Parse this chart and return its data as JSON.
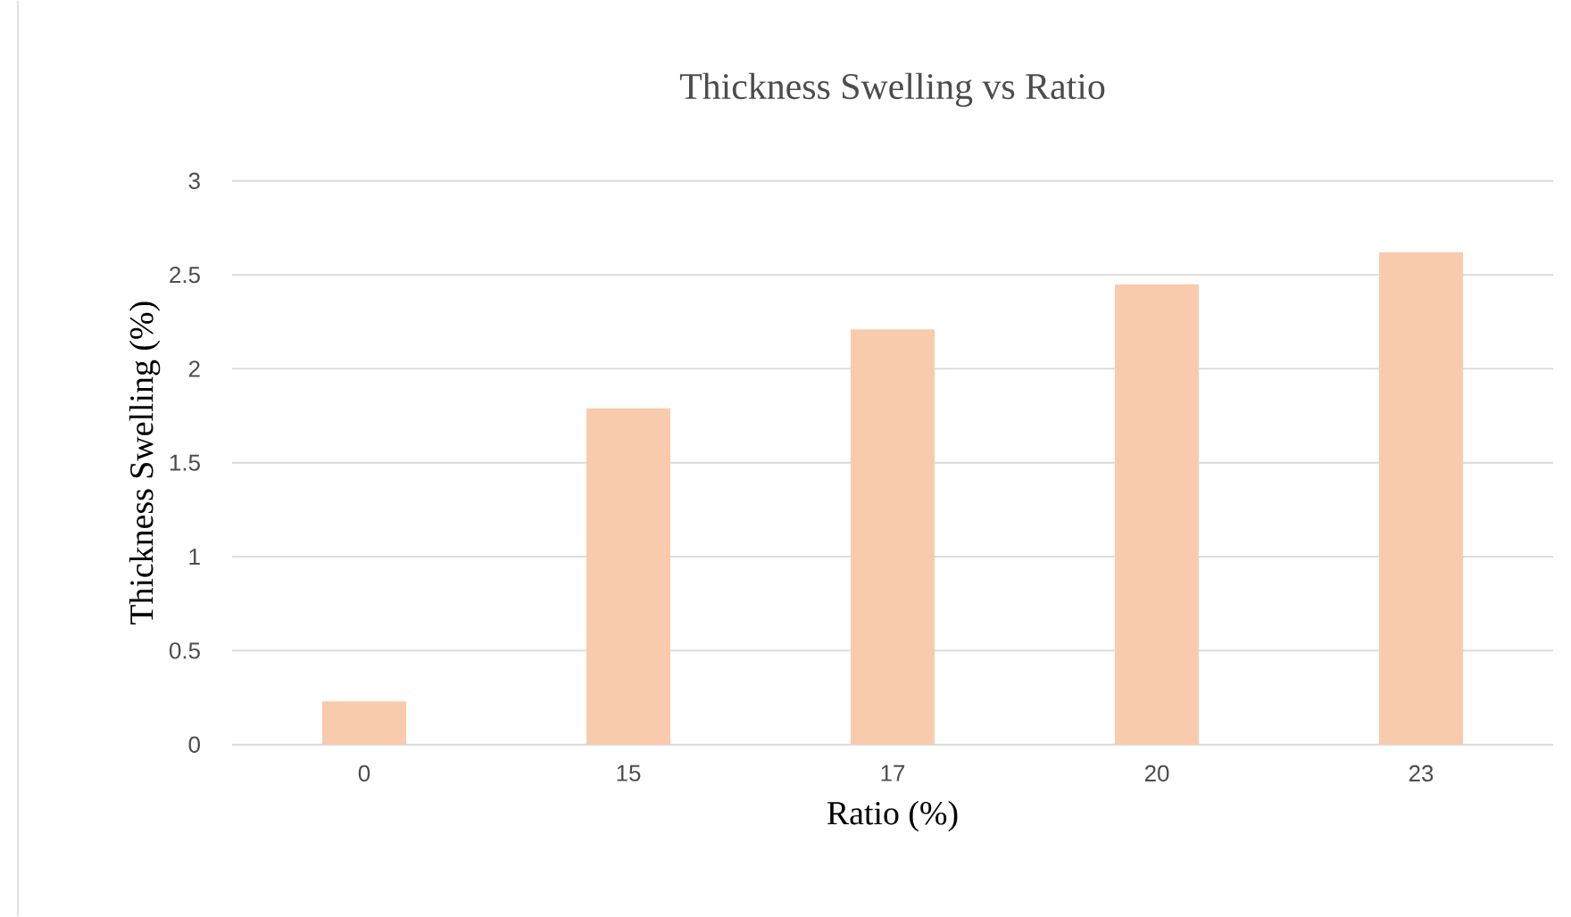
{
  "chart_data": {
    "type": "bar",
    "title": "Thickness Swelling vs Ratio",
    "xlabel": "Ratio (%)",
    "ylabel": "Thickness Swelling (%)",
    "categories": [
      "0",
      "15",
      "17",
      "20",
      "23"
    ],
    "values": [
      0.23,
      1.79,
      2.21,
      2.45,
      2.62
    ],
    "color": "#f8cbad",
    "ylim": [
      0,
      3
    ],
    "yticks": [
      0,
      0.5,
      1,
      1.5,
      2,
      2.5,
      3
    ],
    "grid": "y"
  }
}
